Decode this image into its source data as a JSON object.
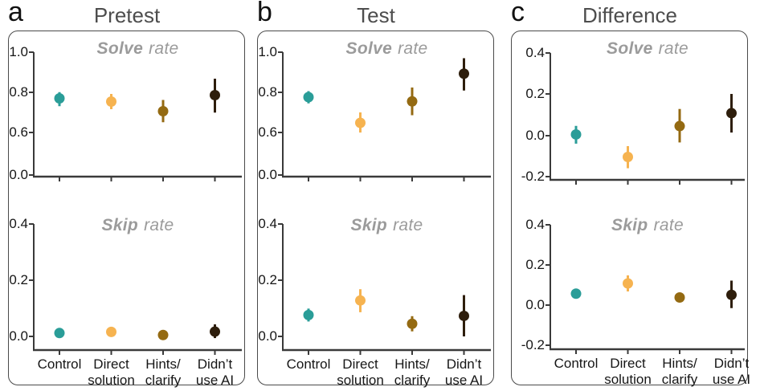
{
  "colors": {
    "series": [
      "#2a9d98",
      "#f6b350",
      "#946a12",
      "#2e1e0c"
    ],
    "axis": "#3a3a3a",
    "subplot_title": "#9b9b9b",
    "panel_title": "#4d4d4d"
  },
  "chart_data": [
    {
      "type": "scatter",
      "panel": "a",
      "title": "Pretest",
      "categories": [
        "Control",
        "Direct solution",
        "Hints/clarify",
        "Didn’t use AI"
      ],
      "category_label_lines": [
        [
          "Control"
        ],
        [
          "Direct",
          "solution"
        ],
        [
          "Hints/",
          "clarify"
        ],
        [
          "Didn’t",
          "use AI"
        ]
      ],
      "subplots": [
        {
          "name": "solve_rate",
          "title_bold": "Solve",
          "title_rest": "rate",
          "axis": "solve_ab",
          "yticks": [
            {
              "label": "1.0",
              "value": 1.0
            },
            {
              "label": "0.8",
              "value": 0.8
            },
            {
              "label": "0.6",
              "value": 0.6
            },
            {
              "label": "0.0",
              "value": 0.0
            }
          ],
          "points": [
            {
              "value": 0.77,
              "lo": 0.731,
              "hi": 0.801
            },
            {
              "value": 0.754,
              "lo": 0.716,
              "hi": 0.792
            },
            {
              "value": 0.706,
              "lo": 0.651,
              "hi": 0.762
            },
            {
              "value": 0.786,
              "lo": 0.699,
              "hi": 0.868
            }
          ]
        },
        {
          "name": "skip_rate",
          "title_bold": "Skip",
          "title_rest": "rate",
          "axis": "skip_ab",
          "yticks": [
            {
              "label": "0.4",
              "value": 0.4
            },
            {
              "label": "0.2",
              "value": 0.2
            },
            {
              "label": "0.0",
              "value": 0.0
            }
          ],
          "points": [
            {
              "value": 0.012,
              "lo": 0.004,
              "hi": 0.022
            },
            {
              "value": 0.016,
              "lo": 0.007,
              "hi": 0.027
            },
            {
              "value": 0.005,
              "lo": 0.0,
              "hi": 0.012
            },
            {
              "value": 0.017,
              "lo": -0.006,
              "hi": 0.043
            }
          ]
        }
      ]
    },
    {
      "type": "scatter",
      "panel": "b",
      "title": "Test",
      "categories": [
        "Control",
        "Direct solution",
        "Hints/clarify",
        "Didn’t use AI"
      ],
      "category_label_lines": [
        [
          "Control"
        ],
        [
          "Direct",
          "solution"
        ],
        [
          "Hints/",
          "clarify"
        ],
        [
          "Didn’t",
          "use AI"
        ]
      ],
      "subplots": [
        {
          "name": "solve_rate",
          "title_bold": "Solve",
          "title_rest": "rate",
          "axis": "solve_ab",
          "yticks": [
            {
              "label": "1.0",
              "value": 1.0
            },
            {
              "label": "0.8",
              "value": 0.8
            },
            {
              "label": "0.6",
              "value": 0.6
            },
            {
              "label": "0.0",
              "value": 0.0
            }
          ],
          "points": [
            {
              "value": 0.776,
              "lo": 0.745,
              "hi": 0.806
            },
            {
              "value": 0.648,
              "lo": 0.599,
              "hi": 0.7
            },
            {
              "value": 0.755,
              "lo": 0.686,
              "hi": 0.824
            },
            {
              "value": 0.893,
              "lo": 0.809,
              "hi": 0.97
            }
          ]
        },
        {
          "name": "skip_rate",
          "title_bold": "Skip",
          "title_rest": "rate",
          "axis": "skip_ab",
          "yticks": [
            {
              "label": "0.4",
              "value": 0.4
            },
            {
              "label": "0.2",
              "value": 0.2
            },
            {
              "label": "0.0",
              "value": 0.0
            }
          ],
          "points": [
            {
              "value": 0.076,
              "lo": 0.053,
              "hi": 0.099
            },
            {
              "value": 0.128,
              "lo": 0.086,
              "hi": 0.168
            },
            {
              "value": 0.045,
              "lo": 0.018,
              "hi": 0.072
            },
            {
              "value": 0.073,
              "lo": 0.0,
              "hi": 0.147
            }
          ]
        }
      ]
    },
    {
      "type": "scatter",
      "panel": "c",
      "title": "Difference",
      "categories": [
        "Control",
        "Direct solution",
        "Hints/clarify",
        "Didn’t use AI"
      ],
      "category_label_lines": [
        [
          "Control"
        ],
        [
          "Direct",
          "solution"
        ],
        [
          "Hints/",
          "clarify"
        ],
        [
          "Didn’t",
          "use AI"
        ]
      ],
      "subplots": [
        {
          "name": "solve_rate",
          "title_bold": "Solve",
          "title_rest": "rate",
          "axis": "solve_c",
          "yticks": [
            {
              "label": "0.4",
              "value": 0.4
            },
            {
              "label": "0.2",
              "value": 0.2
            },
            {
              "label": "0.0",
              "value": 0.0
            },
            {
              "label": "-0.2",
              "value": -0.2
            }
          ],
          "points": [
            {
              "value": 0.006,
              "lo": -0.039,
              "hi": 0.047
            },
            {
              "value": -0.104,
              "lo": -0.159,
              "hi": -0.051
            },
            {
              "value": 0.046,
              "lo": -0.033,
              "hi": 0.128
            },
            {
              "value": 0.108,
              "lo": 0.015,
              "hi": 0.2
            }
          ]
        },
        {
          "name": "skip_rate",
          "title_bold": "Skip",
          "title_rest": "rate",
          "axis": "skip_c",
          "yticks": [
            {
              "label": "0.4",
              "value": 0.4
            },
            {
              "label": "0.2",
              "value": 0.2
            },
            {
              "label": "0.0",
              "value": 0.0
            },
            {
              "label": "-0.2",
              "value": -0.2
            }
          ],
          "points": [
            {
              "value": 0.057,
              "lo": 0.038,
              "hi": 0.077
            },
            {
              "value": 0.108,
              "lo": 0.068,
              "hi": 0.148
            },
            {
              "value": 0.038,
              "lo": 0.016,
              "hi": 0.061
            },
            {
              "value": 0.051,
              "lo": -0.015,
              "hi": 0.122
            }
          ]
        }
      ]
    }
  ]
}
